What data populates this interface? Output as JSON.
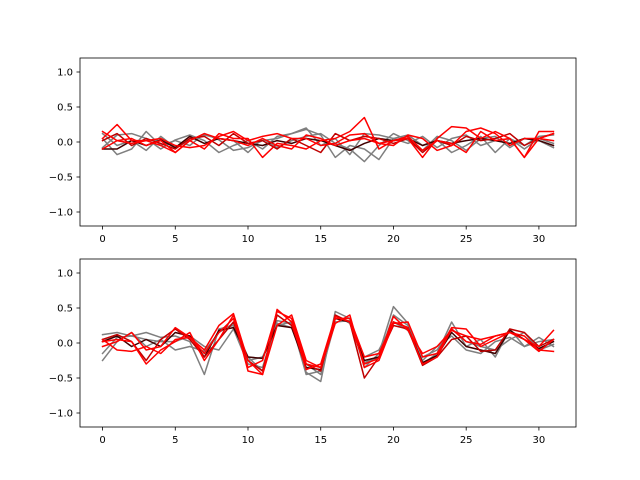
{
  "chart_data": [
    {
      "type": "line",
      "title": "",
      "xlabel": "",
      "ylabel": "",
      "xlim": [
        -1.55,
        32.55
      ],
      "ylim": [
        -1.2,
        1.2
      ],
      "xticks": [
        0,
        5,
        10,
        15,
        20,
        25,
        30
      ],
      "yticks": [
        -1.0,
        -0.5,
        0.0,
        0.5,
        1.0
      ],
      "xtick_labels": [
        "0",
        "5",
        "10",
        "15",
        "20",
        "25",
        "30"
      ],
      "ytick_labels": [
        "−1.0",
        "−0.5",
        "0.0",
        "0.5",
        "1.0"
      ],
      "grid": false,
      "x": [
        0,
        1,
        2,
        3,
        4,
        5,
        6,
        7,
        8,
        9,
        10,
        11,
        12,
        13,
        14,
        15,
        16,
        17,
        18,
        19,
        20,
        21,
        22,
        23,
        24,
        25,
        26,
        27,
        28,
        29,
        30,
        31
      ],
      "series": [
        {
          "color": "#7f7f7f",
          "values": [
            0.05,
            -0.18,
            -0.1,
            0.15,
            -0.05,
            0.02,
            -0.05,
            0.12,
            0.03,
            -0.12,
            -0.08,
            0.02,
            0.05,
            0.12,
            0.18,
            0.1,
            -0.22,
            -0.05,
            -0.1,
            -0.25,
            0.05,
            0.1,
            -0.05,
            0.03,
            -0.15,
            -0.05,
            0.08,
            -0.15,
            0.05,
            -0.05,
            0.08,
            0.1
          ]
        },
        {
          "color": "#7f7f7f",
          "values": [
            -0.08,
            0.1,
            0.12,
            0.05,
            -0.1,
            0.03,
            0.1,
            0.02,
            -0.15,
            -0.05,
            0.02,
            -0.1,
            0.08,
            0.12,
            0.2,
            -0.05,
            0.05,
            -0.18,
            0.12,
            0.1,
            0.05,
            -0.02,
            0.08,
            -0.08,
            0.05,
            0.1,
            -0.05,
            0.02,
            0.05,
            -0.1,
            0.05,
            -0.02
          ]
        },
        {
          "color": "#7f7f7f",
          "values": [
            0.12,
            -0.05,
            0.02,
            -0.12,
            0.08,
            -0.08,
            0.02,
            0.1,
            0.05,
            0.02,
            -0.15,
            0.05,
            -0.08,
            0.02,
            0.08,
            0.12,
            -0.02,
            -0.1,
            -0.28,
            -0.05,
            0.12,
            0.02,
            -0.12,
            0.08,
            0.02,
            -0.12,
            0.05,
            0.08,
            -0.08,
            0.05,
            0.02,
            -0.08
          ]
        },
        {
          "color": "#3f0000",
          "values": [
            -0.1,
            -0.1,
            0.02,
            -0.05,
            0.03,
            -0.08,
            0.08,
            -0.02,
            0.05,
            0.02,
            -0.02,
            -0.05,
            0.02,
            -0.02,
            0.05,
            0.02,
            -0.05,
            -0.12,
            -0.02,
            0.05,
            0.02,
            0.05,
            -0.05,
            0.02,
            -0.02,
            0.02,
            0.05,
            0.02,
            -0.02,
            0.05,
            0.02,
            -0.05
          ]
        },
        {
          "color": "#bf0000",
          "values": [
            0.02,
            0.12,
            -0.05,
            0.05,
            -0.02,
            -0.1,
            0.05,
            0.08,
            -0.05,
            0.12,
            -0.02,
            0.02,
            -0.1,
            0.05,
            -0.05,
            -0.15,
            0.12,
            0.02,
            0.08,
            0.05,
            -0.02,
            0.05,
            -0.15,
            0.02,
            -0.05,
            0.08,
            0.02,
            0.05,
            0.12,
            -0.05,
            0.05,
            0.12
          ]
        },
        {
          "color": "#ff0000",
          "values": [
            0.15,
            0.02,
            -0.02,
            0.02,
            -0.05,
            -0.15,
            0.02,
            0.12,
            0.05,
            0.02,
            -0.05,
            0.05,
            -0.05,
            -0.1,
            0.1,
            0.05,
            -0.05,
            0.02,
            0.05,
            -0.02,
            0.02,
            0.05,
            -0.22,
            0.05,
            0.22,
            0.2,
            0.05,
            0.15,
            0.05,
            -0.22,
            0.05,
            0.12
          ]
        },
        {
          "color": "#ff0000",
          "values": [
            0.05,
            0.25,
            0.02,
            0.02,
            0.05,
            -0.05,
            -0.08,
            -0.05,
            0.08,
            0.15,
            0.02,
            0.08,
            0.12,
            0.05,
            0.05,
            -0.05,
            -0.02,
            0.1,
            0.12,
            -0.02,
            -0.05,
            0.1,
            0.05,
            -0.12,
            -0.05,
            0.15,
            0.2,
            0.12,
            -0.05,
            0.05,
            0.05,
            0.02
          ]
        },
        {
          "color": "#ff0000",
          "values": [
            -0.1,
            0.02,
            0.05,
            -0.05,
            0.02,
            -0.15,
            0.02,
            -0.1,
            0.12,
            0.05,
            0.05,
            -0.22,
            -0.02,
            -0.05,
            -0.1,
            0.02,
            0.05,
            0.15,
            0.35,
            -0.1,
            0.02,
            0.08,
            -0.12,
            0.02,
            -0.02,
            -0.15,
            0.15,
            0.02,
            0.05,
            -0.22,
            0.15,
            0.15
          ]
        }
      ]
    },
    {
      "type": "line",
      "title": "",
      "xlabel": "",
      "ylabel": "",
      "xlim": [
        -1.55,
        32.55
      ],
      "ylim": [
        -1.2,
        1.2
      ],
      "xticks": [
        0,
        5,
        10,
        15,
        20,
        25,
        30
      ],
      "yticks": [
        -1.0,
        -0.5,
        0.0,
        0.5,
        1.0
      ],
      "xtick_labels": [
        "0",
        "5",
        "10",
        "15",
        "20",
        "25",
        "30"
      ],
      "ytick_labels": [
        "−1.0",
        "−0.5",
        "0.0",
        "0.5",
        "1.0"
      ],
      "grid": false,
      "x": [
        0,
        1,
        2,
        3,
        4,
        5,
        6,
        7,
        8,
        9,
        10,
        11,
        12,
        13,
        14,
        15,
        16,
        17,
        18,
        19,
        20,
        21,
        22,
        23,
        24,
        25,
        26,
        27,
        28,
        29,
        30,
        31
      ],
      "series": [
        {
          "color": "#7f7f7f",
          "values": [
            0.12,
            0.15,
            0.1,
            0.15,
            0.08,
            0.1,
            0.02,
            -0.45,
            0.2,
            0.25,
            -0.25,
            -0.2,
            0.25,
            0.3,
            -0.42,
            -0.55,
            0.45,
            0.35,
            -0.35,
            -0.15,
            0.52,
            0.28,
            -0.3,
            -0.15,
            0.3,
            -0.05,
            0.05,
            -0.2,
            0.2,
            -0.05,
            0.02,
            0.05
          ]
        },
        {
          "color": "#7f7f7f",
          "values": [
            -0.25,
            0.02,
            0.15,
            -0.05,
            0.05,
            -0.1,
            -0.05,
            -0.12,
            0.15,
            0.28,
            -0.2,
            -0.4,
            0.28,
            0.22,
            -0.3,
            -0.45,
            0.3,
            0.32,
            -0.2,
            -0.1,
            0.3,
            0.18,
            -0.25,
            -0.05,
            0.1,
            -0.1,
            -0.15,
            0.02,
            0.08,
            -0.05,
            0.08,
            -0.05
          ]
        },
        {
          "color": "#7f7f7f",
          "values": [
            -0.15,
            0.08,
            0.1,
            0.05,
            0.02,
            0.02,
            0.1,
            -0.05,
            -0.1,
            0.2,
            -0.3,
            -0.35,
            0.32,
            0.28,
            -0.45,
            -0.4,
            0.4,
            0.28,
            -0.28,
            -0.2,
            0.4,
            0.25,
            -0.2,
            -0.1,
            0.2,
            0.02,
            -0.05,
            -0.1,
            0.05,
            0.15,
            -0.1,
            -0.02
          ]
        },
        {
          "color": "#3f0000",
          "values": [
            0.02,
            0.1,
            -0.05,
            0.05,
            -0.05,
            0.15,
            0.1,
            -0.2,
            0.18,
            0.22,
            -0.2,
            -0.22,
            0.25,
            0.22,
            -0.35,
            -0.38,
            0.35,
            0.3,
            -0.25,
            -0.2,
            0.3,
            0.22,
            -0.28,
            -0.18,
            0.15,
            -0.05,
            -0.1,
            -0.15,
            0.18,
            0.05,
            -0.08,
            0.02
          ]
        },
        {
          "color": "#bf0000",
          "values": [
            0.05,
            0.12,
            0.02,
            -0.25,
            0.05,
            0.2,
            0.05,
            -0.2,
            0.05,
            0.3,
            -0.25,
            -0.4,
            0.4,
            0.25,
            -0.3,
            -0.4,
            0.4,
            0.3,
            -0.5,
            -0.2,
            0.25,
            0.2,
            -0.32,
            -0.2,
            0.05,
            0.1,
            -0.12,
            -0.1,
            0.2,
            0.15,
            -0.05,
            0.05
          ]
        },
        {
          "color": "#ff0000",
          "values": [
            0.02,
            0.05,
            0.02,
            -0.3,
            -0.1,
            0.02,
            0.15,
            -0.25,
            0.05,
            0.4,
            -0.4,
            -0.45,
            0.48,
            0.3,
            -0.38,
            -0.3,
            0.38,
            0.3,
            -0.3,
            -0.22,
            0.38,
            0.18,
            -0.15,
            -0.05,
            0.18,
            0.1,
            0.05,
            0.1,
            0.15,
            0.1,
            -0.1,
            -0.12
          ]
        },
        {
          "color": "#ff0000",
          "values": [
            -0.05,
            0.02,
            0.15,
            -0.1,
            -0.05,
            0.22,
            0.08,
            -0.15,
            0.15,
            0.35,
            -0.35,
            -0.25,
            0.45,
            0.35,
            -0.3,
            -0.35,
            0.35,
            0.35,
            -0.2,
            -0.15,
            0.3,
            0.22,
            -0.3,
            -0.2,
            0.2,
            0.02,
            -0.02,
            0.1,
            0.15,
            0.05,
            -0.12,
            0.05
          ]
        },
        {
          "color": "#ff0000",
          "values": [
            0.05,
            -0.1,
            -0.12,
            -0.05,
            -0.15,
            0.05,
            0.08,
            -0.1,
            0.25,
            0.42,
            -0.25,
            -0.45,
            0.25,
            0.4,
            -0.25,
            -0.35,
            0.28,
            0.4,
            -0.35,
            -0.25,
            0.28,
            0.3,
            -0.2,
            -0.15,
            0.22,
            0.2,
            -0.05,
            0.05,
            0.15,
            0.05,
            -0.05,
            0.18
          ]
        }
      ]
    }
  ]
}
